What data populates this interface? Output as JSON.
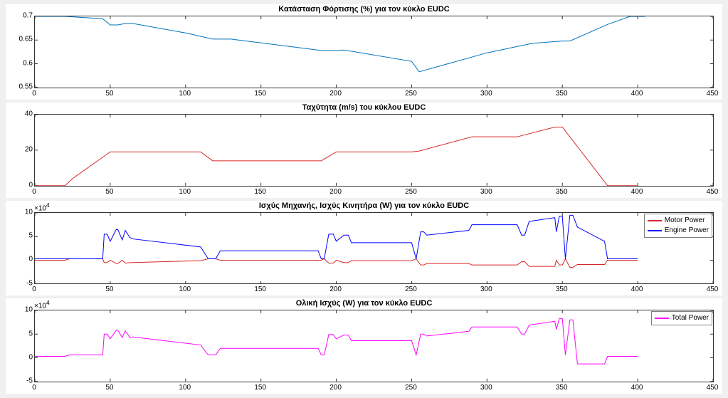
{
  "background": "#f0f0f0",
  "plot_bg": "#ffffff",
  "axis_color": "#333333",
  "title_fontsize": 11,
  "tick_fontsize": 10,
  "panels": [
    {
      "id": "soc",
      "title": "Κατάσταση Φόρτισης (%) για τον κύκλο EUDC",
      "type": "line",
      "xlim": [
        0,
        450
      ],
      "ylim": [
        0.55,
        0.7
      ],
      "xticks": [
        0,
        50,
        100,
        150,
        200,
        250,
        300,
        350,
        400,
        450
      ],
      "yticks": [
        0.55,
        0.6,
        0.65,
        0.7
      ],
      "series": [
        {
          "color": "#0072bd",
          "width": 1,
          "data": [
            [
              0,
              0.7
            ],
            [
              20,
              0.7
            ],
            [
              45,
              0.695
            ],
            [
              50,
              0.682
            ],
            [
              55,
              0.682
            ],
            [
              60,
              0.685
            ],
            [
              65,
              0.685
            ],
            [
              100,
              0.665
            ],
            [
              118,
              0.652
            ],
            [
              122,
              0.652
            ],
            [
              130,
              0.652
            ],
            [
              190,
              0.628
            ],
            [
              195,
              0.628
            ],
            [
              200,
              0.628
            ],
            [
              205,
              0.629
            ],
            [
              250,
              0.605
            ],
            [
              255,
              0.583
            ],
            [
              300,
              0.623
            ],
            [
              330,
              0.643
            ],
            [
              350,
              0.648
            ],
            [
              355,
              0.648
            ],
            [
              380,
              0.683
            ],
            [
              395,
              0.7
            ],
            [
              405,
              0.7
            ]
          ]
        }
      ]
    },
    {
      "id": "speed",
      "title": "Ταχύτητα (m/s) του κύκλου EUDC",
      "type": "line",
      "xlim": [
        0,
        450
      ],
      "ylim": [
        0,
        40
      ],
      "xticks": [
        0,
        50,
        100,
        150,
        200,
        250,
        300,
        350,
        400,
        450
      ],
      "yticks": [
        0,
        20,
        40
      ],
      "series": [
        {
          "color": "#d62728",
          "width": 1,
          "data": [
            [
              0,
              0
            ],
            [
              20,
              0
            ],
            [
              25,
              4
            ],
            [
              50,
              19
            ],
            [
              60,
              19
            ],
            [
              110,
              19
            ],
            [
              118,
              14
            ],
            [
              190,
              14
            ],
            [
              200,
              19
            ],
            [
              210,
              19
            ],
            [
              250,
              19
            ],
            [
              255,
              19.5
            ],
            [
              290,
              27.5
            ],
            [
              320,
              27.5
            ],
            [
              345,
              33
            ],
            [
              350,
              33
            ],
            [
              380,
              0
            ],
            [
              400,
              0
            ]
          ]
        }
      ]
    },
    {
      "id": "power",
      "title": "Ισχύς Μηχανής, Ισχύς Κινητήρα (W) για τον κύκλο EUDC",
      "type": "line",
      "xlim": [
        0,
        450
      ],
      "ylim": [
        -5,
        10
      ],
      "exp": "×10",
      "exp_sup": "4",
      "xticks": [
        0,
        50,
        100,
        150,
        200,
        250,
        300,
        350,
        400,
        450
      ],
      "yticks": [
        -5,
        0,
        5,
        10
      ],
      "legend": [
        {
          "label": "Motor Power",
          "color": "#d62728"
        },
        {
          "label": "Engine Power",
          "color": "#0000ff"
        }
      ],
      "series": [
        {
          "color": "#d62728",
          "width": 1,
          "data": [
            [
              0,
              0
            ],
            [
              20,
              0
            ],
            [
              23,
              0.3
            ],
            [
              45,
              0.3
            ],
            [
              46,
              -0.5
            ],
            [
              48,
              -0.5
            ],
            [
              50,
              0
            ],
            [
              54,
              -0.7
            ],
            [
              55,
              -0.7
            ],
            [
              58,
              0
            ],
            [
              60,
              -0.6
            ],
            [
              63,
              -0.5
            ],
            [
              110,
              -0.1
            ],
            [
              115,
              0.3
            ],
            [
              120,
              0.3
            ],
            [
              123,
              0
            ],
            [
              190,
              0
            ],
            [
              192,
              0.3
            ],
            [
              195,
              -0.6
            ],
            [
              198,
              -0.6
            ],
            [
              200,
              0
            ],
            [
              205,
              -0.5
            ],
            [
              208,
              -0.5
            ],
            [
              210,
              -0.1
            ],
            [
              250,
              -0.1
            ],
            [
              253,
              0.3
            ],
            [
              256,
              -1.0
            ],
            [
              258,
              -1.0
            ],
            [
              260,
              -0.7
            ],
            [
              288,
              -0.7
            ],
            [
              290,
              -1.0
            ],
            [
              320,
              -1.0
            ],
            [
              323,
              -0.3
            ],
            [
              325,
              -0.3
            ],
            [
              328,
              -1.3
            ],
            [
              345,
              -1.3
            ],
            [
              346,
              0
            ],
            [
              348,
              -1.0
            ],
            [
              350,
              -1.0
            ],
            [
              352,
              0.3
            ],
            [
              355,
              -1.5
            ],
            [
              357,
              -1.5
            ],
            [
              360,
              -0.9
            ],
            [
              378,
              -0.9
            ],
            [
              380,
              0
            ],
            [
              400,
              0
            ]
          ]
        },
        {
          "color": "#0000ff",
          "width": 1,
          "data": [
            [
              0,
              0.3
            ],
            [
              20,
              0.3
            ],
            [
              45,
              0.3
            ],
            [
              46,
              5.5
            ],
            [
              48,
              5.5
            ],
            [
              50,
              4.0
            ],
            [
              54,
              6.5
            ],
            [
              55,
              6.5
            ],
            [
              58,
              4.3
            ],
            [
              60,
              6.3
            ],
            [
              63,
              4.8
            ],
            [
              65,
              4.5
            ],
            [
              110,
              2.8
            ],
            [
              115,
              0.3
            ],
            [
              120,
              0.3
            ],
            [
              123,
              2.0
            ],
            [
              188,
              2.0
            ],
            [
              190,
              0.3
            ],
            [
              192,
              0.3
            ],
            [
              195,
              5.5
            ],
            [
              198,
              5.5
            ],
            [
              200,
              4.0
            ],
            [
              205,
              5.3
            ],
            [
              208,
              5.3
            ],
            [
              210,
              3.7
            ],
            [
              250,
              3.7
            ],
            [
              253,
              0.3
            ],
            [
              256,
              6.0
            ],
            [
              258,
              6.0
            ],
            [
              260,
              5.3
            ],
            [
              288,
              6.3
            ],
            [
              290,
              7.5
            ],
            [
              320,
              7.5
            ],
            [
              323,
              5.3
            ],
            [
              325,
              5.3
            ],
            [
              328,
              8.2
            ],
            [
              345,
              9.0
            ],
            [
              346,
              6.0
            ],
            [
              348,
              9.3
            ],
            [
              350,
              9.3
            ],
            [
              352,
              0.3
            ],
            [
              355,
              9.5
            ],
            [
              357,
              9.5
            ],
            [
              360,
              7.0
            ],
            [
              378,
              4.0
            ],
            [
              380,
              0.3
            ],
            [
              400,
              0.3
            ]
          ]
        }
      ]
    },
    {
      "id": "total",
      "title": "Ολική Ισχύς (W) για τον κύκλο EUDC",
      "type": "line",
      "xlim": [
        0,
        450
      ],
      "ylim": [
        -5,
        10
      ],
      "exp": "×10",
      "exp_sup": "4",
      "xticks": [
        0,
        50,
        100,
        150,
        200,
        250,
        300,
        350,
        400,
        450
      ],
      "yticks": [
        -5,
        0,
        5,
        10
      ],
      "legend": [
        {
          "label": "Total Power",
          "color": "#ff00ff"
        }
      ],
      "series": [
        {
          "color": "#ff00ff",
          "width": 1,
          "data": [
            [
              0,
              0.3
            ],
            [
              20,
              0.3
            ],
            [
              23,
              0.6
            ],
            [
              45,
              0.6
            ],
            [
              46,
              5.0
            ],
            [
              48,
              5.0
            ],
            [
              50,
              4.0
            ],
            [
              54,
              5.8
            ],
            [
              55,
              5.8
            ],
            [
              58,
              4.3
            ],
            [
              60,
              5.7
            ],
            [
              63,
              4.3
            ],
            [
              65,
              4.4
            ],
            [
              110,
              2.7
            ],
            [
              115,
              0.6
            ],
            [
              120,
              0.6
            ],
            [
              123,
              2.0
            ],
            [
              188,
              2.0
            ],
            [
              190,
              0.6
            ],
            [
              192,
              0.6
            ],
            [
              195,
              4.9
            ],
            [
              198,
              4.9
            ],
            [
              200,
              4.0
            ],
            [
              205,
              4.8
            ],
            [
              208,
              4.8
            ],
            [
              210,
              3.6
            ],
            [
              250,
              3.6
            ],
            [
              253,
              0.6
            ],
            [
              256,
              5.0
            ],
            [
              258,
              5.0
            ],
            [
              260,
              4.6
            ],
            [
              288,
              5.6
            ],
            [
              290,
              6.5
            ],
            [
              320,
              6.5
            ],
            [
              323,
              5.0
            ],
            [
              325,
              5.0
            ],
            [
              328,
              6.9
            ],
            [
              345,
              7.7
            ],
            [
              346,
              6.0
            ],
            [
              348,
              8.3
            ],
            [
              350,
              8.3
            ],
            [
              352,
              0.6
            ],
            [
              355,
              8.0
            ],
            [
              357,
              8.0
            ],
            [
              360,
              -1.3
            ],
            [
              378,
              -1.3
            ],
            [
              380,
              0.3
            ],
            [
              400,
              0.3
            ]
          ]
        }
      ]
    }
  ]
}
